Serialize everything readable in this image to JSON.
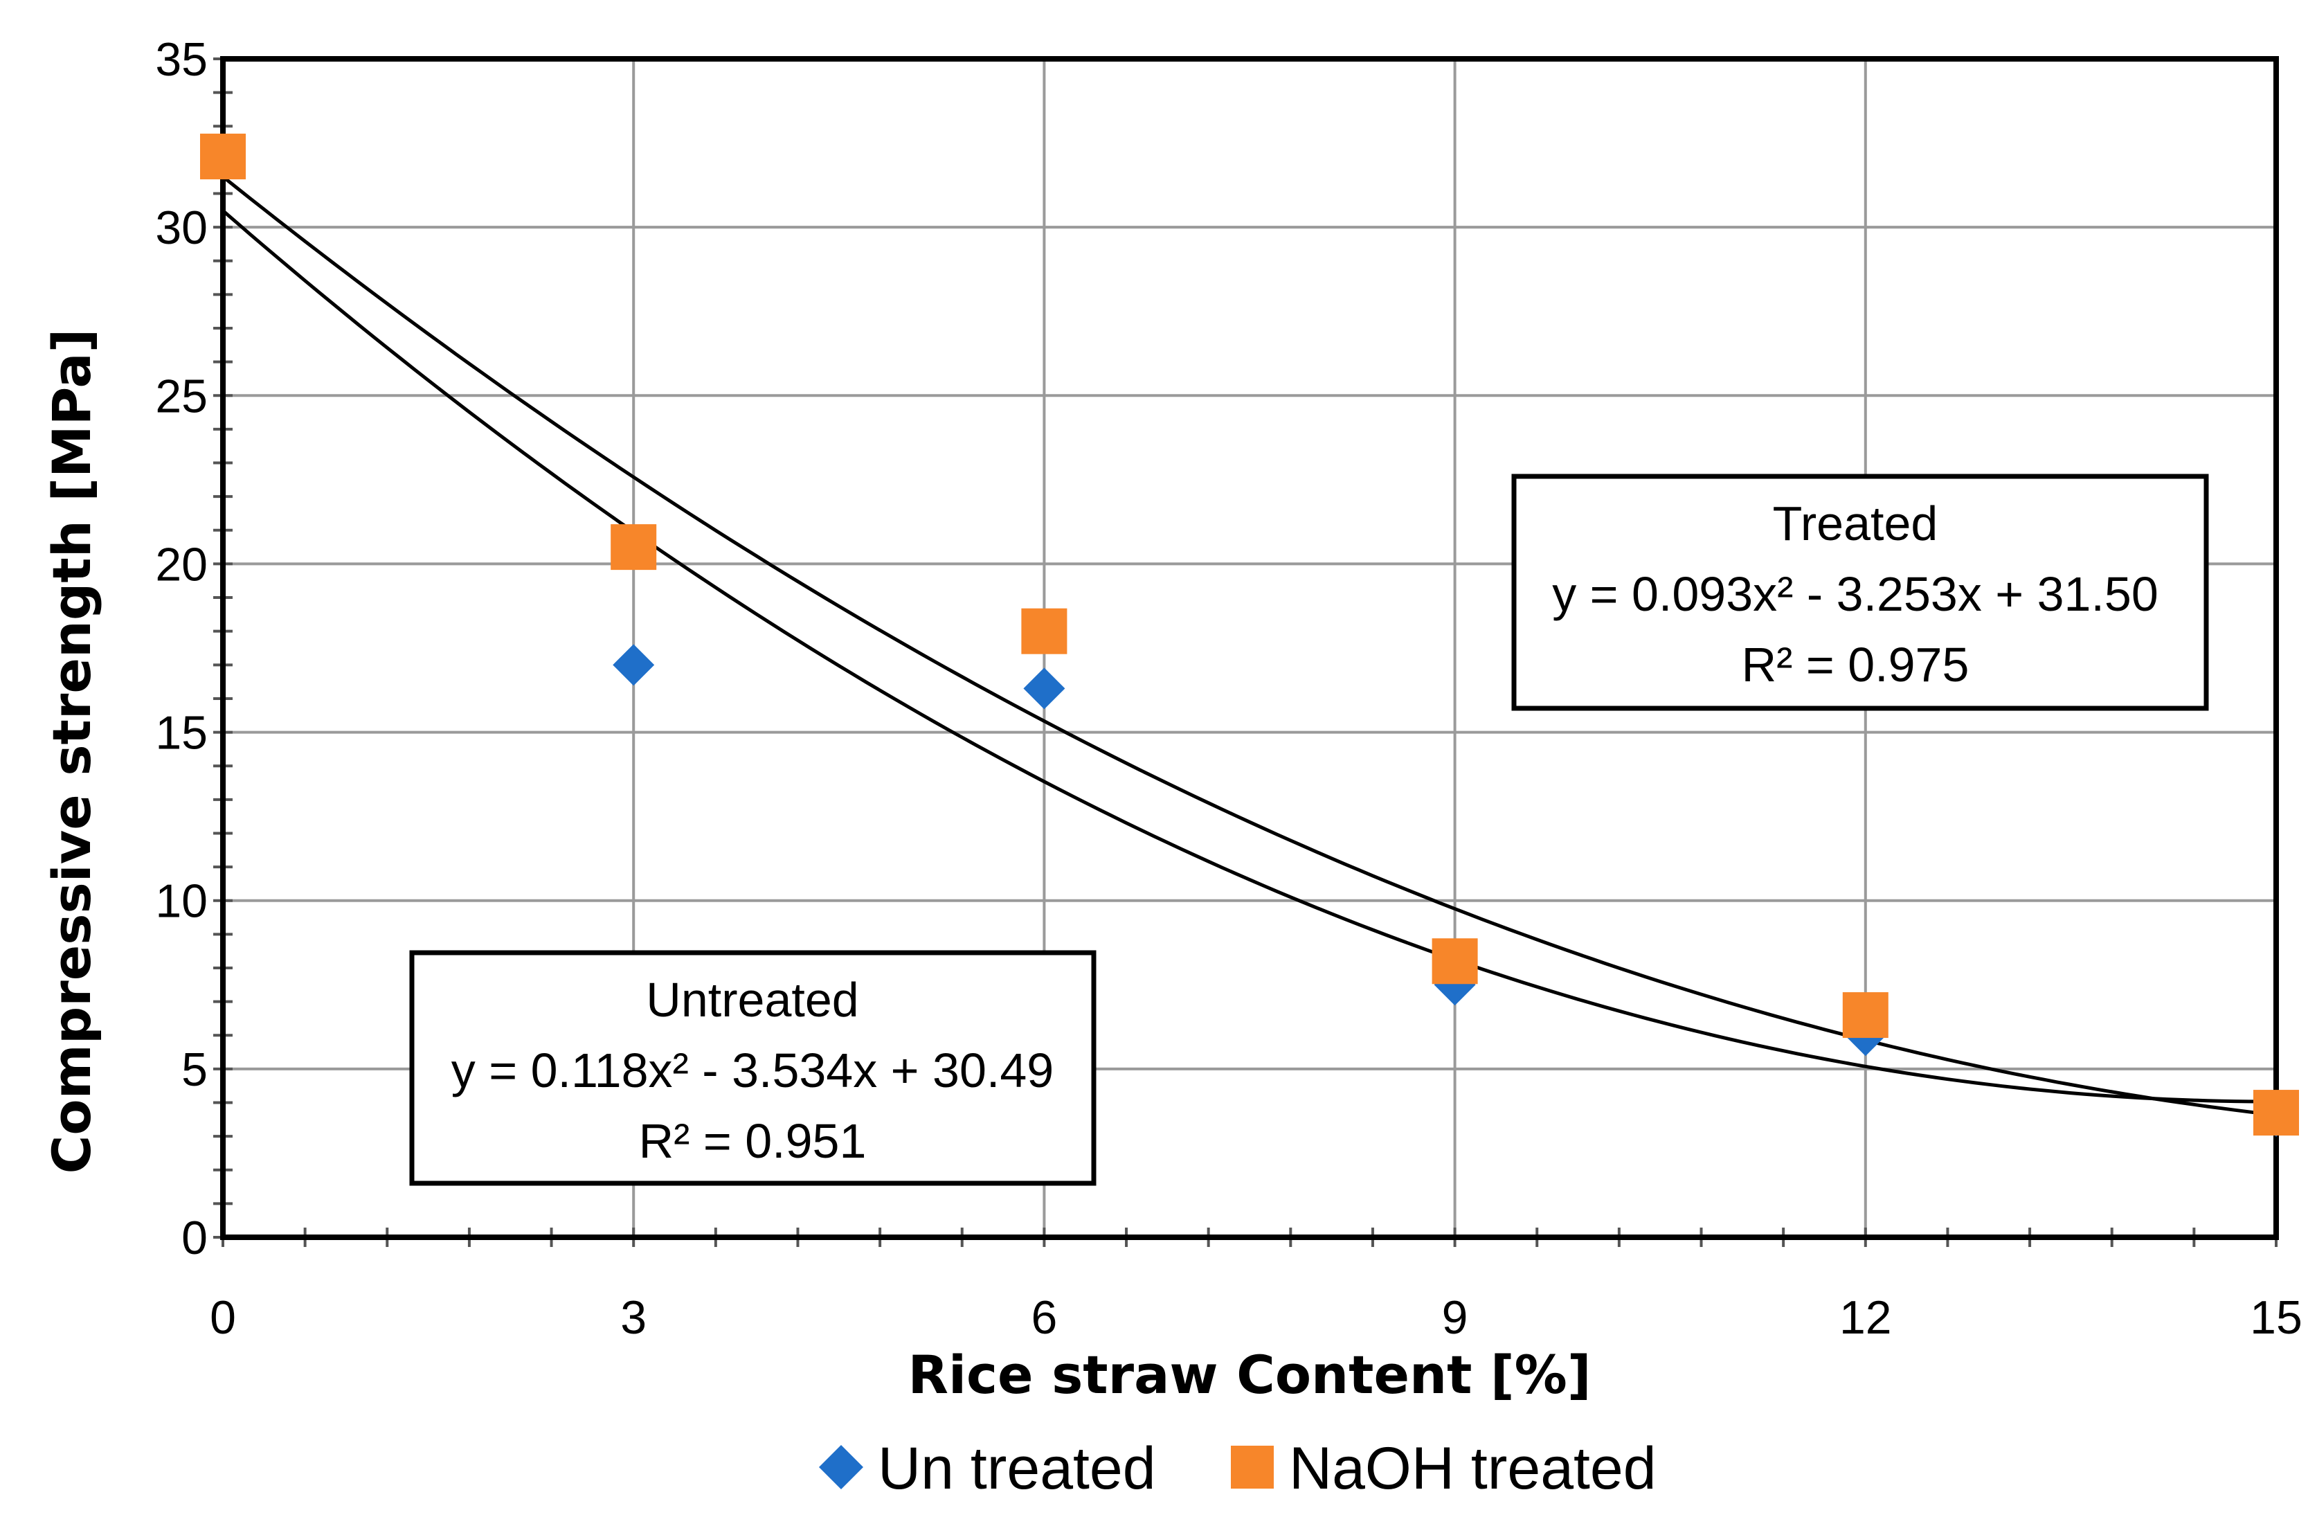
{
  "chart_data": {
    "type": "scatter",
    "title": "",
    "xlabel": "Rice straw Content [%]",
    "ylabel": "Compressive strength [MPa]",
    "xlim": [
      0,
      15
    ],
    "ylim": [
      0,
      35
    ],
    "x_ticks": [
      0,
      3,
      6,
      9,
      12,
      15
    ],
    "y_ticks": [
      0,
      5,
      10,
      15,
      20,
      25,
      30,
      35
    ],
    "grid": true,
    "legend_position": "bottom",
    "series": [
      {
        "name": "Un treated",
        "marker": "diamond",
        "color": "#1f6fc9",
        "x": [
          0,
          3,
          6,
          9,
          12,
          15
        ],
        "values": [
          32.1,
          17.0,
          16.3,
          7.5,
          6.0,
          3.6
        ]
      },
      {
        "name": "NaOH treated",
        "marker": "square",
        "color": "#f7862a",
        "x": [
          0,
          3,
          6,
          9,
          12,
          15
        ],
        "values": [
          32.1,
          20.5,
          18.0,
          8.2,
          6.6,
          3.7
        ]
      }
    ],
    "trendlines": [
      {
        "name": "Untreated",
        "a": 0.118,
        "b": -3.534,
        "c": 30.49,
        "equation": "y = 0.118x² - 3.534x + 30.49",
        "r2": "R² = 0.951"
      },
      {
        "name": "Treated",
        "a": 0.093,
        "b": -3.253,
        "c": 31.5,
        "equation": "y = 0.093x² - 3.253x + 31.50",
        "r2": "R² = 0.975"
      }
    ]
  }
}
